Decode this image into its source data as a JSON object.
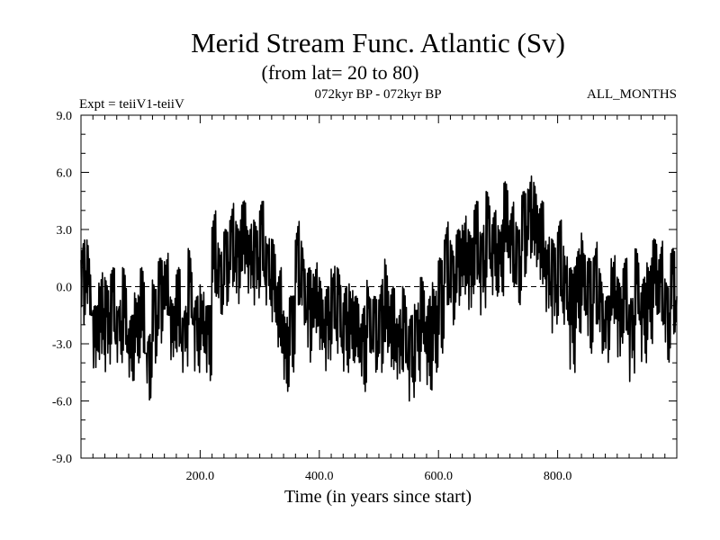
{
  "chart_data": {
    "type": "line",
    "title": "Merid Stream Func. Atlantic (Sv)",
    "subtitle": "(from lat= 20 to 80)",
    "experiment_label": "Expt = teiiV1-teiiV",
    "period_label": "072kyr BP - 072kyr BP",
    "months_label": "ALL_MONTHS",
    "xlabel": "Time (in years since start)",
    "ylabel": "",
    "xlim": [
      0,
      1000
    ],
    "ylim": [
      -9,
      9
    ],
    "x_ticks": [
      200,
      400,
      600,
      800
    ],
    "x_tick_labels": [
      "200.0",
      "400.0",
      "600.0",
      "800.0"
    ],
    "y_ticks": [
      -9,
      -6,
      -3,
      0,
      3,
      6,
      9
    ],
    "y_tick_labels": [
      "-9.0",
      "-6.0",
      "-3.0",
      "0.0",
      "3.0",
      "6.0",
      "9.0"
    ],
    "zero_line": true,
    "grid": false,
    "line_color": "#000000",
    "series": [
      {
        "x": [
          0,
          10,
          20,
          30,
          40,
          50,
          60,
          70,
          80,
          90,
          100,
          110,
          120,
          130,
          140,
          150,
          160,
          170,
          180,
          190,
          200,
          210,
          220,
          230,
          240,
          250,
          260,
          270,
          280,
          290,
          300,
          310,
          320,
          330,
          340,
          350,
          360,
          370,
          380,
          390,
          400,
          410,
          420,
          430,
          440,
          450,
          460,
          470,
          480,
          490,
          500,
          510,
          520,
          530,
          540,
          550,
          560,
          570,
          580,
          590,
          600,
          610,
          620,
          630,
          640,
          650,
          660,
          670,
          680,
          690,
          700,
          710,
          720,
          730,
          740,
          750,
          760,
          770,
          780,
          790,
          800,
          810,
          820,
          830,
          840,
          850,
          860,
          870,
          880,
          890,
          900,
          910,
          920,
          930,
          940,
          950,
          960,
          970,
          980,
          990,
          1000
        ],
        "values": [
          0.5,
          1.5,
          -3.0,
          -1.0,
          -2.0,
          -0.5,
          -2.5,
          -1.0,
          -3.5,
          -2.0,
          -1.0,
          -4.5,
          -1.5,
          -0.5,
          0.5,
          -2.5,
          -1.0,
          -3.0,
          0.0,
          -2.5,
          -1.5,
          -3.0,
          2.0,
          0.5,
          1.0,
          2.5,
          1.5,
          3.0,
          2.0,
          1.5,
          2.5,
          1.5,
          0.5,
          -1.0,
          -3.0,
          -2.5,
          1.5,
          0.5,
          -1.5,
          -0.5,
          -1.5,
          -2.5,
          -0.5,
          -1.0,
          -2.5,
          -1.5,
          -2.0,
          -3.0,
          -1.5,
          -2.5,
          -2.0,
          -1.0,
          -2.5,
          -3.0,
          -2.0,
          -3.5,
          -2.5,
          -1.5,
          -3.0,
          -2.0,
          -1.0,
          1.5,
          0.5,
          1.0,
          2.0,
          1.0,
          2.5,
          1.0,
          3.0,
          2.0,
          1.5,
          3.5,
          2.5,
          1.5,
          3.0,
          4.0,
          3.5,
          2.5,
          1.0,
          0.5,
          1.5,
          0.5,
          -1.5,
          0.0,
          1.0,
          -1.0,
          0.5,
          -1.0,
          -2.0,
          0.5,
          -1.5,
          -0.5,
          -2.5,
          0.0,
          -1.5,
          -0.5,
          1.0,
          0.5,
          -1.5,
          0.0,
          -0.5
        ],
        "min_values": [
          -2.0,
          -1.5,
          -4.5,
          -4.0,
          -4.5,
          -3.0,
          -4.0,
          -3.5,
          -5.0,
          -4.0,
          -3.5,
          -6.0,
          -4.0,
          -3.0,
          -1.5,
          -4.0,
          -3.5,
          -4.5,
          -2.0,
          -4.5,
          -3.5,
          -5.0,
          -0.5,
          -1.5,
          -1.0,
          0.0,
          -1.0,
          0.5,
          -0.5,
          -1.0,
          0.0,
          -1.0,
          -2.0,
          -3.5,
          -5.5,
          -4.5,
          -1.0,
          -2.0,
          -4.0,
          -2.5,
          -3.5,
          -4.5,
          -3.0,
          -3.5,
          -4.5,
          -4.0,
          -4.0,
          -5.5,
          -3.5,
          -4.5,
          -4.5,
          -3.5,
          -4.5,
          -5.0,
          -4.5,
          -6.0,
          -5.0,
          -3.5,
          -5.5,
          -4.5,
          -3.5,
          -1.0,
          -2.0,
          -1.0,
          -0.5,
          -1.5,
          0.0,
          -1.5,
          0.5,
          -0.5,
          -0.5,
          1.5,
          0.0,
          -1.0,
          0.5,
          1.5,
          1.0,
          0.0,
          -1.5,
          -2.5,
          -1.5,
          -2.0,
          -4.5,
          -2.5,
          -1.5,
          -3.5,
          -2.0,
          -3.5,
          -4.0,
          -2.0,
          -4.0,
          -2.5,
          -5.0,
          -2.0,
          -4.0,
          -3.0,
          -1.5,
          -2.0,
          -4.0,
          -2.5,
          -2.5
        ],
        "max_values": [
          2.5,
          2.5,
          -1.0,
          1.0,
          0.5,
          1.0,
          -0.5,
          1.0,
          -1.5,
          0.0,
          1.0,
          -2.5,
          0.5,
          1.5,
          2.0,
          -0.5,
          1.0,
          -1.0,
          2.0,
          -0.5,
          0.5,
          -1.0,
          4.0,
          2.5,
          3.0,
          4.5,
          3.5,
          4.5,
          3.5,
          3.5,
          4.5,
          3.0,
          2.5,
          1.0,
          -1.0,
          -0.5,
          3.5,
          2.5,
          1.0,
          1.5,
          0.5,
          0.0,
          1.5,
          1.0,
          0.0,
          0.5,
          -0.5,
          -1.0,
          0.5,
          -0.5,
          0.5,
          1.5,
          0.0,
          -1.0,
          0.0,
          -1.5,
          -0.5,
          0.5,
          -0.5,
          0.5,
          1.5,
          3.5,
          2.5,
          3.0,
          4.0,
          3.0,
          4.5,
          3.5,
          5.0,
          4.0,
          3.5,
          5.5,
          4.5,
          3.5,
          5.0,
          6.0,
          5.5,
          4.5,
          3.0,
          2.5,
          3.5,
          2.5,
          1.0,
          2.0,
          3.0,
          1.5,
          2.5,
          1.0,
          -0.5,
          2.0,
          0.5,
          1.5,
          -0.5,
          2.0,
          0.5,
          1.5,
          2.5,
          2.5,
          0.5,
          2.0,
          1.5
        ]
      }
    ]
  }
}
